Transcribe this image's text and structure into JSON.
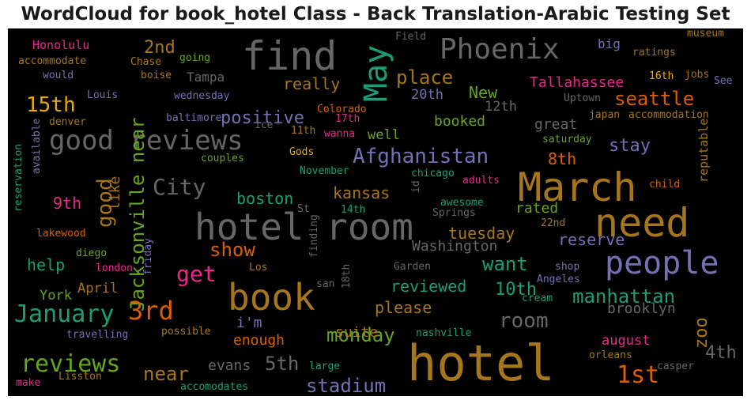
{
  "title": "WordCloud for book_hotel Class - Back Translation-Arabic Testing Set",
  "chart_data": {
    "type": "wordcloud",
    "background": "#000000",
    "palette": [
      "#1b9e77",
      "#d95f02",
      "#7570b3",
      "#e7298a",
      "#66a61e",
      "#e6ab02",
      "#a6761d",
      "#666666"
    ],
    "words": [
      {
        "text": "hotel",
        "color": "#a6761d",
        "weight": 1.0
      },
      {
        "text": "hotel room",
        "color": "#666666",
        "weight": 0.95
      },
      {
        "text": "March",
        "color": "#a6761d",
        "weight": 0.9
      },
      {
        "text": "need",
        "color": "#a6761d",
        "weight": 0.88
      },
      {
        "text": "book",
        "color": "#a6761d",
        "weight": 0.85
      },
      {
        "text": "find",
        "color": "#666666",
        "weight": 0.84
      },
      {
        "text": "people",
        "color": "#7570b3",
        "weight": 0.8
      },
      {
        "text": "good reviews",
        "color": "#666666",
        "weight": 0.72
      },
      {
        "text": "May",
        "color": "#1b9e77",
        "weight": 0.7
      },
      {
        "text": "Phoenix",
        "color": "#666666",
        "weight": 0.65
      },
      {
        "text": "Jacksonville near",
        "color": "#66a61e",
        "weight": 0.62
      },
      {
        "text": "3rd",
        "color": "#d95f02",
        "weight": 0.6
      },
      {
        "text": "January",
        "color": "#1b9e77",
        "weight": 0.58
      },
      {
        "text": "reviews",
        "color": "#66a61e",
        "weight": 0.58
      },
      {
        "text": "Afghanistan",
        "color": "#7570b3",
        "weight": 0.55
      },
      {
        "text": "City",
        "color": "#666666",
        "weight": 0.55
      },
      {
        "text": "1st",
        "color": "#d95f02",
        "weight": 0.55
      },
      {
        "text": "15th",
        "color": "#e6ab02",
        "weight": 0.52
      },
      {
        "text": "seattle",
        "color": "#d95f02",
        "weight": 0.5
      },
      {
        "text": "place",
        "color": "#a6761d",
        "weight": 0.5
      },
      {
        "text": "room",
        "color": "#666666",
        "weight": 0.5
      },
      {
        "text": "stadium",
        "color": "#7570b3",
        "weight": 0.5
      },
      {
        "text": "monday",
        "color": "#66a61e",
        "weight": 0.5
      },
      {
        "text": "manhattan",
        "color": "#1b9e77",
        "weight": 0.48
      },
      {
        "text": "near",
        "color": "#a6761d",
        "weight": 0.48
      },
      {
        "text": "get",
        "color": "#e7298a",
        "weight": 0.48
      },
      {
        "text": "show",
        "color": "#d95f02",
        "weight": 0.45
      },
      {
        "text": "5th",
        "color": "#666666",
        "weight": 0.45
      },
      {
        "text": "2nd",
        "color": "#a6761d",
        "weight": 0.45
      },
      {
        "text": "good",
        "color": "#a6761d",
        "weight": 0.45
      },
      {
        "text": "stay",
        "color": "#7570b3",
        "weight": 0.42
      },
      {
        "text": "zoo",
        "color": "#a6761d",
        "weight": 0.42
      },
      {
        "text": "4th",
        "color": "#666666",
        "weight": 0.42
      },
      {
        "text": "want",
        "color": "#1b9e77",
        "weight": 0.42
      },
      {
        "text": "10th",
        "color": "#1b9e77",
        "weight": 0.42
      },
      {
        "text": "positive",
        "color": "#7570b3",
        "weight": 0.4
      },
      {
        "text": "really",
        "color": "#a6761d",
        "weight": 0.4
      },
      {
        "text": "New",
        "color": "#66a61e",
        "weight": 0.4
      },
      {
        "text": "boston",
        "color": "#1b9e77",
        "weight": 0.38
      },
      {
        "text": "kansas",
        "color": "#a6761d",
        "weight": 0.38
      },
      {
        "text": "tuesday",
        "color": "#a6761d",
        "weight": 0.38
      },
      {
        "text": "reviewed",
        "color": "#1b9e77",
        "weight": 0.38
      },
      {
        "text": "please",
        "color": "#a6761d",
        "weight": 0.38
      },
      {
        "text": "help",
        "color": "#1b9e77",
        "weight": 0.36
      },
      {
        "text": "reserve",
        "color": "#7570b3",
        "weight": 0.36
      },
      {
        "text": "8th",
        "color": "#d95f02",
        "weight": 0.36
      },
      {
        "text": "9th",
        "color": "#e7298a",
        "weight": 0.36
      },
      {
        "text": "Washington",
        "color": "#666666",
        "weight": 0.35
      },
      {
        "text": "Tallahassee",
        "color": "#e7298a",
        "weight": 0.34
      },
      {
        "text": "suite",
        "color": "#a6761d",
        "weight": 0.34
      },
      {
        "text": "evans",
        "color": "#666666",
        "weight": 0.32
      },
      {
        "text": "enough",
        "color": "#d95f02",
        "weight": 0.32
      },
      {
        "text": "i'm",
        "color": "#7570b3",
        "weight": 0.32
      },
      {
        "text": "booked",
        "color": "#66a61e",
        "weight": 0.32
      },
      {
        "text": "great",
        "color": "#666666",
        "weight": 0.32
      },
      {
        "text": "brooklyn",
        "color": "#666666",
        "weight": 0.32
      },
      {
        "text": "like",
        "color": "#a6761d",
        "weight": 0.32
      },
      {
        "text": "rated",
        "color": "#66a61e",
        "weight": 0.3
      },
      {
        "text": "august",
        "color": "#e7298a",
        "weight": 0.3
      },
      {
        "text": "12th",
        "color": "#666666",
        "weight": 0.3
      },
      {
        "text": "20th",
        "color": "#7570b3",
        "weight": 0.3
      },
      {
        "text": "well",
        "color": "#66a61e",
        "weight": 0.3
      },
      {
        "text": "April",
        "color": "#a6761d",
        "weight": 0.3
      },
      {
        "text": "York",
        "color": "#66a61e",
        "weight": 0.3
      },
      {
        "text": "Tampa",
        "color": "#666666",
        "weight": 0.28
      },
      {
        "text": "Honolulu",
        "color": "#e7298a",
        "weight": 0.28
      },
      {
        "text": "big",
        "color": "#7570b3",
        "weight": 0.28
      },
      {
        "text": "reputable",
        "color": "#a6761d",
        "weight": 0.26
      },
      {
        "text": "Colorado",
        "color": "#d95f02",
        "weight": 0.24
      },
      {
        "text": "Uptown",
        "color": "#666666",
        "weight": 0.24
      },
      {
        "text": "accommodation",
        "color": "#a6761d",
        "weight": 0.24
      },
      {
        "text": "museum",
        "color": "#a6761d",
        "weight": 0.24
      },
      {
        "text": "ratings",
        "color": "#a6761d",
        "weight": 0.24
      },
      {
        "text": "16th",
        "color": "#e6ab02",
        "weight": 0.22
      },
      {
        "text": "jobs",
        "color": "#a6761d",
        "weight": 0.22
      },
      {
        "text": "See",
        "color": "#7570b3",
        "weight": 0.22
      },
      {
        "text": "japan",
        "color": "#a6761d",
        "weight": 0.22
      },
      {
        "text": "saturday",
        "color": "#66a61e",
        "weight": 0.22
      },
      {
        "text": "child",
        "color": "#d95f02",
        "weight": 0.22
      },
      {
        "text": "22nd",
        "color": "#a6761d",
        "weight": 0.22
      },
      {
        "text": "shop",
        "color": "#7570b3",
        "weight": 0.22
      },
      {
        "text": "Angeles",
        "color": "#7570b3",
        "weight": 0.22
      },
      {
        "text": "cream",
        "color": "#1b9e77",
        "weight": 0.22
      },
      {
        "text": "orleans",
        "color": "#a6761d",
        "weight": 0.22
      },
      {
        "text": "casper",
        "color": "#666666",
        "weight": 0.22
      },
      {
        "text": "nashville",
        "color": "#1b9e77",
        "weight": 0.22
      },
      {
        "text": "large",
        "color": "#1b9e77",
        "weight": 0.22
      },
      {
        "text": "accomodates",
        "color": "#1b9e77",
        "weight": 0.22
      },
      {
        "text": "Lisston",
        "color": "#a6761d",
        "weight": 0.22
      },
      {
        "text": "make",
        "color": "#e7298a",
        "weight": 0.22
      },
      {
        "text": "travelling",
        "color": "#7570b3",
        "weight": 0.22
      },
      {
        "text": "possible",
        "color": "#a6761d",
        "weight": 0.22
      },
      {
        "text": "san",
        "color": "#666666",
        "weight": 0.22
      },
      {
        "text": "18th",
        "color": "#666666",
        "weight": 0.22
      },
      {
        "text": "Garden",
        "color": "#666666",
        "weight": 0.22
      },
      {
        "text": "Los",
        "color": "#a6761d",
        "weight": 0.22
      },
      {
        "text": "london",
        "color": "#e7298a",
        "weight": 0.22
      },
      {
        "text": "diego",
        "color": "#66a61e",
        "weight": 0.22
      },
      {
        "text": "friday",
        "color": "#7570b3",
        "weight": 0.2
      },
      {
        "text": "lakewood",
        "color": "#d95f02",
        "weight": 0.22
      },
      {
        "text": "reservation",
        "color": "#1b9e77",
        "weight": 0.2
      },
      {
        "text": "available",
        "color": "#7570b3",
        "weight": 0.2
      },
      {
        "text": "denver",
        "color": "#a6761d",
        "weight": 0.22
      },
      {
        "text": "baltimore",
        "color": "#7570b3",
        "weight": 0.22
      },
      {
        "text": "Louis",
        "color": "#7570b3",
        "weight": 0.22
      },
      {
        "text": "would",
        "color": "#7570b3",
        "weight": 0.22
      },
      {
        "text": "accommodate",
        "color": "#a6761d",
        "weight": 0.22
      },
      {
        "text": "boise",
        "color": "#a6761d",
        "weight": 0.22
      },
      {
        "text": "Chase",
        "color": "#a6761d",
        "weight": 0.22
      },
      {
        "text": "going",
        "color": "#66a61e",
        "weight": 0.22
      },
      {
        "text": "wednesday",
        "color": "#7570b3",
        "weight": 0.22
      },
      {
        "text": "Field",
        "color": "#666666",
        "weight": 0.22
      },
      {
        "text": "17th",
        "color": "#e7298a",
        "weight": 0.22
      },
      {
        "text": "wanna",
        "color": "#e7298a",
        "weight": 0.22
      },
      {
        "text": "11th",
        "color": "#a6761d",
        "weight": 0.22
      },
      {
        "text": "ice",
        "color": "#666666",
        "weight": 0.22
      },
      {
        "text": "Gods",
        "color": "#e6ab02",
        "weight": 0.22
      },
      {
        "text": "couples",
        "color": "#66a61e",
        "weight": 0.22
      },
      {
        "text": "November",
        "color": "#1b9e77",
        "weight": 0.22
      },
      {
        "text": "chicago",
        "color": "#1b9e77",
        "weight": 0.22
      },
      {
        "text": "id",
        "color": "#666666",
        "weight": 0.2
      },
      {
        "text": "adults",
        "color": "#e7298a",
        "weight": 0.22
      },
      {
        "text": "awesome",
        "color": "#1b9e77",
        "weight": 0.22
      },
      {
        "text": "St",
        "color": "#666666",
        "weight": 0.22
      },
      {
        "text": "14th",
        "color": "#1b9e77",
        "weight": 0.22
      },
      {
        "text": "Springs",
        "color": "#666666",
        "weight": 0.22
      },
      {
        "text": "finding",
        "color": "#666666",
        "weight": 0.2
      }
    ]
  }
}
